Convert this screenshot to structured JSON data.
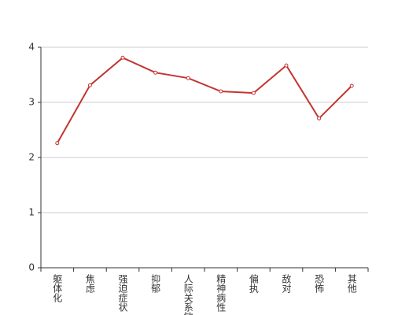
{
  "chart_data": {
    "type": "line",
    "categories": [
      "躯体化",
      "焦虑",
      "强迫症状",
      "抑郁",
      "人际关系敏感",
      "精神病性",
      "偏执",
      "敌对",
      "恐怖",
      "其他"
    ],
    "series": [
      {
        "color": "#c23531",
        "values": [
          2.26,
          3.31,
          3.81,
          3.54,
          3.44,
          3.2,
          3.17,
          3.67,
          2.71,
          3.3
        ]
      }
    ],
    "ylim": [
      0,
      4
    ],
    "yticks": [
      0,
      1,
      2,
      3,
      4
    ],
    "grid": true
  }
}
